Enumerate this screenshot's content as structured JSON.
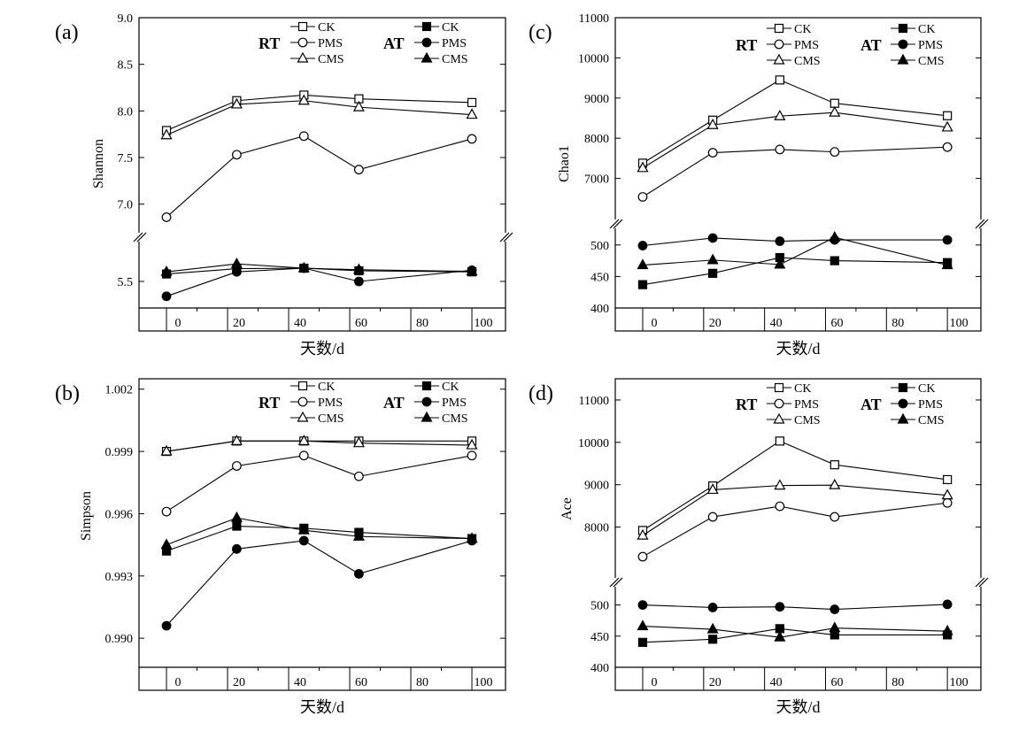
{
  "colors": {
    "line": "#000000",
    "background": "#ffffff"
  },
  "chart_data": [
    {
      "type": "line",
      "panel_label": "(a)",
      "ylabel": "Shannon",
      "xlabel": "天数/d",
      "x_ticks": [
        0,
        20,
        40,
        60,
        80,
        100
      ],
      "broken_axis": true,
      "upper_axis": {
        "ylim": [
          6.75,
          9.0
        ],
        "ticks": [
          7.0,
          7.5,
          8.0,
          8.5,
          9.0
        ],
        "tick_labels": [
          "7.0",
          "7.5",
          "8.0",
          "8.5",
          "9.0"
        ]
      },
      "lower_axis": {
        "ylim": [
          5.0,
          6.1
        ],
        "ticks": [
          5.5
        ],
        "tick_labels": [
          "5.5"
        ]
      },
      "legend": {
        "groups": [
          "RT",
          "AT"
        ],
        "entries": [
          "CK",
          "PMS",
          "CMS"
        ]
      },
      "series": [
        {
          "group": "RT",
          "name": "CK",
          "marker": "square-open",
          "axis": "upper",
          "x": [
            0,
            23,
            45,
            63,
            100
          ],
          "values": [
            7.79,
            8.11,
            8.17,
            8.13,
            8.09
          ]
        },
        {
          "group": "RT",
          "name": "PMS",
          "marker": "circle-open",
          "axis": "upper",
          "x": [
            0,
            23,
            45,
            63,
            100
          ],
          "values": [
            6.86,
            7.53,
            7.73,
            7.37,
            7.7
          ]
        },
        {
          "group": "RT",
          "name": "CMS",
          "marker": "triangle-open",
          "axis": "upper",
          "x": [
            0,
            23,
            45,
            63,
            100
          ],
          "values": [
            7.74,
            8.07,
            8.11,
            8.04,
            7.96
          ]
        },
        {
          "group": "AT",
          "name": "CK",
          "marker": "square-filled",
          "axis": "lower",
          "x": [
            0,
            23,
            45,
            63,
            100
          ],
          "values": [
            5.64,
            5.74,
            5.75,
            5.7,
            5.68
          ]
        },
        {
          "group": "AT",
          "name": "PMS",
          "marker": "circle-filled",
          "axis": "lower",
          "x": [
            0,
            23,
            45,
            63,
            100
          ],
          "values": [
            5.22,
            5.68,
            5.75,
            5.5,
            5.71
          ]
        },
        {
          "group": "AT",
          "name": "CMS",
          "marker": "triangle-filled",
          "axis": "lower",
          "x": [
            0,
            23,
            45,
            63,
            100
          ],
          "values": [
            5.68,
            5.83,
            5.75,
            5.72,
            5.69
          ]
        }
      ]
    },
    {
      "type": "line",
      "panel_label": "(c)",
      "ylabel": "Chao1",
      "xlabel": "天数/d",
      "x_ticks": [
        0,
        20,
        40,
        60,
        80,
        100
      ],
      "broken_axis": true,
      "upper_axis": {
        "ylim": [
          6000,
          11000
        ],
        "ticks": [
          7000,
          8000,
          9000,
          10000,
          11000
        ],
        "tick_labels": [
          "7000",
          "8000",
          "9000",
          "10000",
          "11000"
        ]
      },
      "lower_axis": {
        "ylim": [
          400,
          525
        ],
        "ticks": [
          400,
          450,
          500
        ],
        "tick_labels": [
          "400",
          "450",
          "500"
        ]
      },
      "legend": {
        "groups": [
          "RT",
          "AT"
        ],
        "entries": [
          "CK",
          "PMS",
          "CMS"
        ]
      },
      "series": [
        {
          "group": "RT",
          "name": "CK",
          "marker": "square-open",
          "axis": "upper",
          "x": [
            0,
            23,
            45,
            63,
            100
          ],
          "values": [
            7380,
            8450,
            9450,
            8870,
            8560
          ]
        },
        {
          "group": "RT",
          "name": "PMS",
          "marker": "circle-open",
          "axis": "upper",
          "x": [
            0,
            23,
            45,
            63,
            100
          ],
          "values": [
            6540,
            7640,
            7720,
            7660,
            7780
          ]
        },
        {
          "group": "RT",
          "name": "CMS",
          "marker": "triangle-open",
          "axis": "upper",
          "x": [
            0,
            23,
            45,
            63,
            100
          ],
          "values": [
            7260,
            8330,
            8550,
            8640,
            8270
          ]
        },
        {
          "group": "AT",
          "name": "CK",
          "marker": "square-filled",
          "axis": "lower",
          "x": [
            0,
            23,
            45,
            63,
            100
          ],
          "values": [
            437,
            455,
            480,
            475,
            472
          ]
        },
        {
          "group": "AT",
          "name": "PMS",
          "marker": "circle-filled",
          "axis": "lower",
          "x": [
            0,
            23,
            45,
            63,
            100
          ],
          "values": [
            499,
            511,
            506,
            508,
            508
          ]
        },
        {
          "group": "AT",
          "name": "CMS",
          "marker": "triangle-filled",
          "axis": "lower",
          "x": [
            0,
            23,
            45,
            63,
            100
          ],
          "values": [
            468,
            476,
            469,
            512,
            468
          ]
        }
      ]
    },
    {
      "type": "line",
      "panel_label": "(b)",
      "ylabel": "Simpson",
      "xlabel": "天数/d",
      "x_ticks": [
        0,
        20,
        40,
        60,
        80,
        100
      ],
      "broken_axis": false,
      "axis": {
        "ylim": [
          0.9886,
          1.0025
        ],
        "ticks": [
          0.99,
          0.993,
          0.996,
          0.999,
          1.002
        ],
        "tick_labels": [
          "0.990",
          "0.993",
          "0.996",
          "0.999",
          "1.002"
        ]
      },
      "legend": {
        "groups": [
          "RT",
          "AT"
        ],
        "entries": [
          "CK",
          "PMS",
          "CMS"
        ]
      },
      "series": [
        {
          "group": "RT",
          "name": "CK",
          "marker": "square-open",
          "x": [
            0,
            23,
            45,
            63,
            100
          ],
          "values": [
            0.999,
            0.9995,
            0.9995,
            0.9995,
            0.9995
          ]
        },
        {
          "group": "RT",
          "name": "PMS",
          "marker": "circle-open",
          "x": [
            0,
            23,
            45,
            63,
            100
          ],
          "values": [
            0.9961,
            0.9983,
            0.9988,
            0.9978,
            0.9988
          ]
        },
        {
          "group": "RT",
          "name": "CMS",
          "marker": "triangle-open",
          "x": [
            0,
            23,
            45,
            63,
            100
          ],
          "values": [
            0.999,
            0.9995,
            0.9995,
            0.9994,
            0.9993
          ]
        },
        {
          "group": "AT",
          "name": "CK",
          "marker": "square-filled",
          "x": [
            0,
            23,
            45,
            63,
            100
          ],
          "values": [
            0.9942,
            0.9954,
            0.9953,
            0.9951,
            0.9948
          ]
        },
        {
          "group": "AT",
          "name": "PMS",
          "marker": "circle-filled",
          "x": [
            0,
            23,
            45,
            63,
            100
          ],
          "values": [
            0.9906,
            0.9943,
            0.9947,
            0.9931,
            0.9947
          ]
        },
        {
          "group": "AT",
          "name": "CMS",
          "marker": "triangle-filled",
          "x": [
            0,
            23,
            45,
            63,
            100
          ],
          "values": [
            0.9945,
            0.9958,
            0.9952,
            0.9949,
            0.9948
          ]
        }
      ]
    },
    {
      "type": "line",
      "panel_label": "(d)",
      "ylabel": "Ace",
      "xlabel": "天数/d",
      "x_ticks": [
        0,
        20,
        40,
        60,
        80,
        100
      ],
      "broken_axis": true,
      "upper_axis": {
        "ylim": [
          6800,
          11500
        ],
        "ticks": [
          8000,
          9000,
          10000,
          11000
        ],
        "tick_labels": [
          "8000",
          "9000",
          "10000",
          "11000"
        ]
      },
      "lower_axis": {
        "ylim": [
          400,
          525
        ],
        "ticks": [
          400,
          450,
          500
        ],
        "tick_labels": [
          "400",
          "450",
          "500"
        ]
      },
      "legend": {
        "groups": [
          "RT",
          "AT"
        ],
        "entries": [
          "CK",
          "PMS",
          "CMS"
        ]
      },
      "series": [
        {
          "group": "RT",
          "name": "CK",
          "marker": "square-open",
          "axis": "upper",
          "x": [
            0,
            23,
            45,
            63,
            100
          ],
          "values": [
            7920,
            8970,
            10030,
            9470,
            9120
          ]
        },
        {
          "group": "RT",
          "name": "PMS",
          "marker": "circle-open",
          "axis": "upper",
          "x": [
            0,
            23,
            45,
            63,
            100
          ],
          "values": [
            7300,
            8240,
            8490,
            8240,
            8570
          ]
        },
        {
          "group": "RT",
          "name": "CMS",
          "marker": "triangle-open",
          "axis": "upper",
          "x": [
            0,
            23,
            45,
            63,
            100
          ],
          "values": [
            7800,
            8880,
            8980,
            8990,
            8750
          ]
        },
        {
          "group": "AT",
          "name": "CK",
          "marker": "square-filled",
          "axis": "lower",
          "x": [
            0,
            23,
            45,
            63,
            100
          ],
          "values": [
            440,
            445,
            462,
            452,
            452
          ]
        },
        {
          "group": "AT",
          "name": "PMS",
          "marker": "circle-filled",
          "axis": "lower",
          "x": [
            0,
            23,
            45,
            63,
            100
          ],
          "values": [
            500,
            496,
            497,
            493,
            501
          ]
        },
        {
          "group": "AT",
          "name": "CMS",
          "marker": "triangle-filled",
          "axis": "lower",
          "x": [
            0,
            23,
            45,
            63,
            100
          ],
          "values": [
            466,
            461,
            448,
            463,
            458
          ]
        }
      ]
    }
  ]
}
